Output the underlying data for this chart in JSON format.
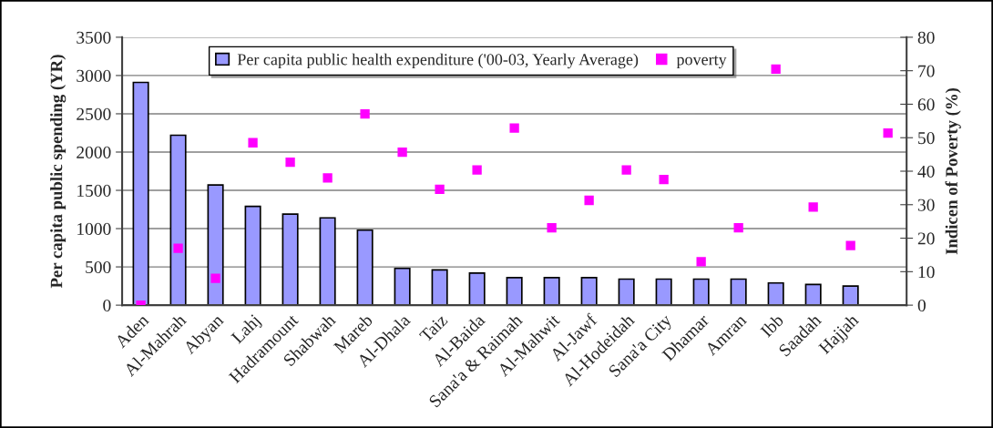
{
  "chart_data": {
    "type": "bar",
    "categories": [
      "Aden",
      "Al-Mahrah",
      "Abyan",
      "Lahj",
      "Hadramount",
      "Shabwah",
      "Mareb",
      "Al-Dhala",
      "Taiz",
      "Al-Baida",
      "Sana'a & Raimah",
      "Al-Mahwit",
      "Al-Jawf",
      "Al-Hodeidah",
      "Sana'a City",
      "Dhamar",
      "Amran",
      "Ibb",
      "Saadah",
      "Hajjah",
      null
    ],
    "series": [
      {
        "name": "Per capita public health expenditure ('00-03, Yearly Average)",
        "color": "#9999ff",
        "values": [
          2910,
          2220,
          1570,
          1290,
          1190,
          1140,
          980,
          480,
          460,
          420,
          360,
          360,
          360,
          340,
          340,
          340,
          340,
          290,
          270,
          250,
          null
        ]
      },
      {
        "name": "poverty",
        "type": "scatter",
        "axis": "y2",
        "color": "#ff00ff",
        "marker": "square",
        "values": [
          0,
          17,
          8,
          48.5,
          42.7,
          38,
          57.1,
          45.7,
          34.6,
          40.4,
          52.9,
          23.1,
          31.3,
          40.4,
          37.5,
          13,
          23.1,
          70.5,
          29.3,
          17.8,
          51.4
        ]
      }
    ],
    "ylabel": "Per capita public spending (YR)",
    "y2label": "Indicen of Poverty (%)",
    "ylim": [
      0,
      3500
    ],
    "yticks": [
      0,
      500,
      1000,
      1500,
      2000,
      2500,
      3000,
      3500
    ],
    "y2lim": [
      0,
      80
    ],
    "y2ticks": [
      0,
      10,
      20,
      30,
      40,
      50,
      60,
      70,
      80
    ],
    "grid": "y",
    "legend": "top"
  }
}
